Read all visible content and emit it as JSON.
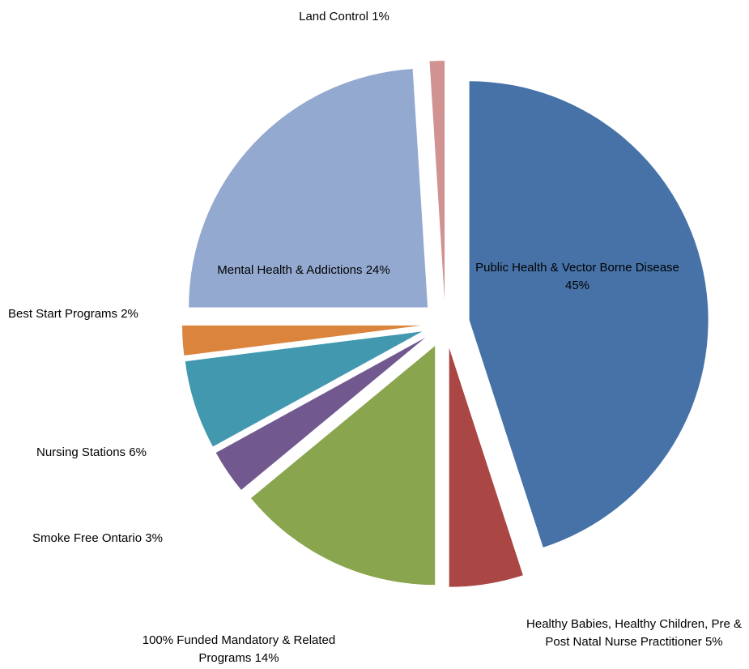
{
  "chart_data": {
    "type": "pie",
    "categories": [
      "Public Health & Vector Borne Disease",
      "Healthy Babies, Healthy Children,  Pre & Post Natal Nurse Practitioner",
      "100% Funded Mandatory & Related Programs",
      "Smoke Free Ontario",
      "Nursing Stations",
      "Best Start Programs",
      "Mental Health & Addictions",
      "Land Control"
    ],
    "values": [
      45,
      5,
      14,
      3,
      6,
      2,
      24,
      1
    ],
    "value_labels": [
      "45%",
      "5%",
      "14%",
      "3%",
      "6%",
      "2%",
      "24%",
      "1%"
    ],
    "colors": [
      "#4672a8",
      "#aa4643",
      "#89a54e",
      "#71588f",
      "#4198af",
      "#db843d",
      "#93a9cf",
      "#d19392"
    ]
  }
}
